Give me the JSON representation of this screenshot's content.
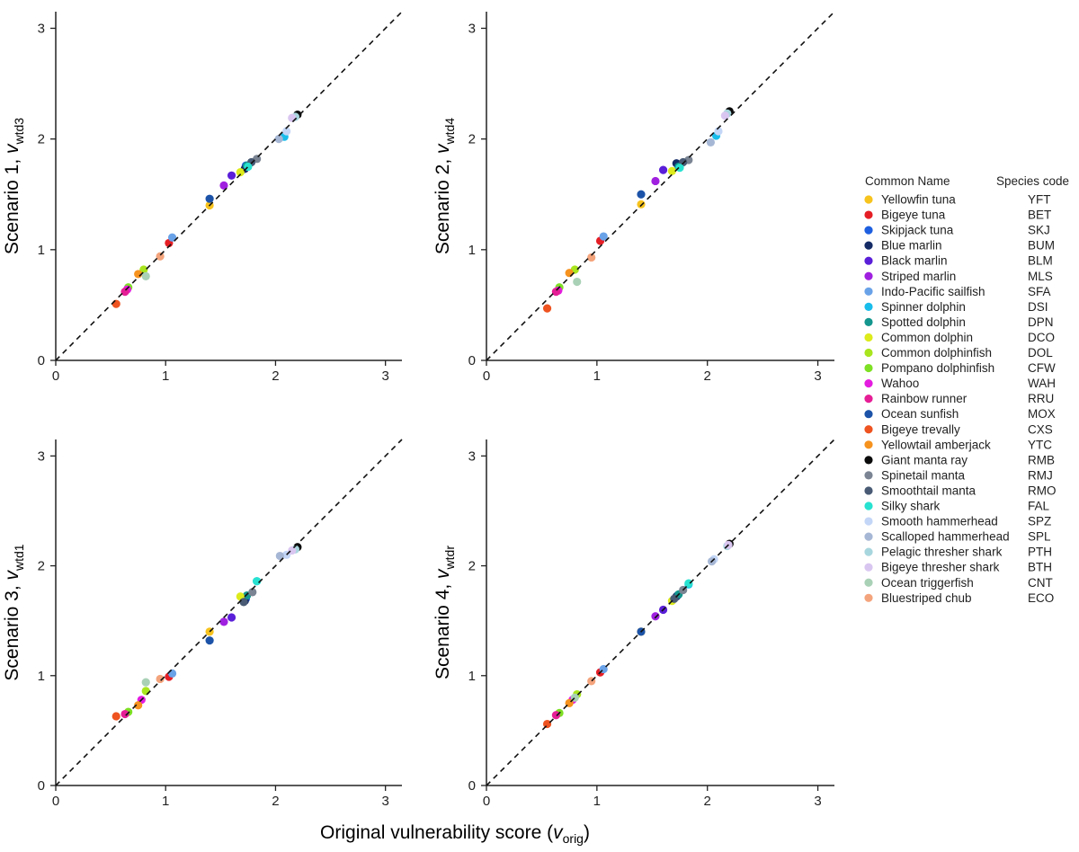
{
  "chart_data": {
    "type": "scatter",
    "xlabel_main": "Original vulnerability score (",
    "xlabel_var": "v",
    "xlabel_sub": "orig",
    "xlabel_close": ")",
    "x_range": [
      0,
      3.15
    ],
    "y_range": [
      0,
      3.15
    ],
    "x_ticks": [
      "0",
      "1",
      "2",
      "3"
    ],
    "y_ticks": [
      "0",
      "1",
      "2",
      "3"
    ],
    "reference_line": "y = x (dashed)",
    "legend": {
      "header_name": "Common Name",
      "header_code": "Species code",
      "entries": [
        {
          "name": "Yellowfin tuna",
          "code": "YFT",
          "color": "#F7C31D"
        },
        {
          "name": "Bigeye tuna",
          "code": "BET",
          "color": "#E51E25"
        },
        {
          "name": "Skipjack tuna",
          "code": "SKJ",
          "color": "#1E5FE0"
        },
        {
          "name": "Blue marlin",
          "code": "BUM",
          "color": "#142B66"
        },
        {
          "name": "Black marlin",
          "code": "BLM",
          "color": "#5A1FD8"
        },
        {
          "name": "Striped marlin",
          "code": "MLS",
          "color": "#A020E0"
        },
        {
          "name": "Indo-Pacific sailfish",
          "code": "SFA",
          "color": "#6AA2E8"
        },
        {
          "name": "Spinner dolphin",
          "code": "DSI",
          "color": "#19BDEB"
        },
        {
          "name": "Spotted dolphin",
          "code": "DPN",
          "color": "#14968E"
        },
        {
          "name": "Common dolphin",
          "code": "DCO",
          "color": "#DDEB1C"
        },
        {
          "name": "Common dolphinfish",
          "code": "DOL",
          "color": "#A9E51E"
        },
        {
          "name": "Pompano dolphinfish",
          "code": "CFW",
          "color": "#7EE024"
        },
        {
          "name": "Wahoo",
          "code": "WAH",
          "color": "#E41CE0"
        },
        {
          "name": "Rainbow runner",
          "code": "RRU",
          "color": "#E61E96"
        },
        {
          "name": "Ocean sunfish",
          "code": "MOX",
          "color": "#1C53A8"
        },
        {
          "name": "Bigeye trevally",
          "code": "CXS",
          "color": "#EE5320"
        },
        {
          "name": "Yellowtail amberjack",
          "code": "YTC",
          "color": "#F6921E"
        },
        {
          "name": "Giant manta ray",
          "code": "RMB",
          "color": "#0A0A0A"
        },
        {
          "name": "Spinetail manta",
          "code": "RMJ",
          "color": "#7A8493"
        },
        {
          "name": "Smoothtail manta",
          "code": "RMO",
          "color": "#485A74"
        },
        {
          "name": "Silky shark",
          "code": "FAL",
          "color": "#27E2D0"
        },
        {
          "name": "Smooth hammerhead",
          "code": "SPZ",
          "color": "#C3D6F7"
        },
        {
          "name": "Scalloped hammerhead",
          "code": "SPL",
          "color": "#A6B7D5"
        },
        {
          "name": "Pelagic thresher shark",
          "code": "PTH",
          "color": "#A8D6DE"
        },
        {
          "name": "Bigeye thresher shark",
          "code": "BTH",
          "color": "#D9C6F0"
        },
        {
          "name": "Ocean triggerfish",
          "code": "CNT",
          "color": "#A9D1B6"
        },
        {
          "name": "Bluestriped chub",
          "code": "ECO",
          "color": "#F4A47C"
        }
      ]
    },
    "panels": [
      {
        "ylabel": "Scenario 1, ",
        "yvar": "v",
        "ysub": "wtd3",
        "points": [
          {
            "code": "YFT",
            "x": 1.4,
            "y": 1.4
          },
          {
            "code": "BET",
            "x": 1.03,
            "y": 1.06
          },
          {
            "code": "SKJ",
            "x": 1.73,
            "y": 1.76
          },
          {
            "code": "BUM",
            "x": 1.72,
            "y": 1.73
          },
          {
            "code": "BLM",
            "x": 1.6,
            "y": 1.67
          },
          {
            "code": "MLS",
            "x": 1.53,
            "y": 1.58
          },
          {
            "code": "SFA",
            "x": 1.06,
            "y": 1.11
          },
          {
            "code": "DSI",
            "x": 2.08,
            "y": 2.02
          },
          {
            "code": "DPN",
            "x": 1.74,
            "y": 1.76
          },
          {
            "code": "DCO",
            "x": 1.68,
            "y": 1.7
          },
          {
            "code": "DOL",
            "x": 0.8,
            "y": 0.82
          },
          {
            "code": "CFW",
            "x": 0.66,
            "y": 0.66
          },
          {
            "code": "WAH",
            "x": 0.65,
            "y": 0.64
          },
          {
            "code": "RRU",
            "x": 0.63,
            "y": 0.62
          },
          {
            "code": "MOX",
            "x": 1.4,
            "y": 1.46
          },
          {
            "code": "CXS",
            "x": 0.55,
            "y": 0.51
          },
          {
            "code": "YTC",
            "x": 0.75,
            "y": 0.78
          },
          {
            "code": "RMB",
            "x": 2.2,
            "y": 2.22
          },
          {
            "code": "RMJ",
            "x": 1.83,
            "y": 1.82
          },
          {
            "code": "RMO",
            "x": 1.78,
            "y": 1.79
          },
          {
            "code": "FAL",
            "x": 1.75,
            "y": 1.75
          },
          {
            "code": "SPZ",
            "x": 2.1,
            "y": 2.07
          },
          {
            "code": "SPL",
            "x": 2.03,
            "y": 2.0
          },
          {
            "code": "PTH",
            "x": 2.18,
            "y": 2.2
          },
          {
            "code": "BTH",
            "x": 2.15,
            "y": 2.19
          },
          {
            "code": "CNT",
            "x": 0.82,
            "y": 0.76
          },
          {
            "code": "ECO",
            "x": 0.95,
            "y": 0.94
          }
        ]
      },
      {
        "ylabel": "Scenario 2, ",
        "yvar": "v",
        "ysub": "wtd4",
        "points": [
          {
            "code": "YFT",
            "x": 1.4,
            "y": 1.41
          },
          {
            "code": "BET",
            "x": 1.03,
            "y": 1.08
          },
          {
            "code": "SKJ",
            "x": 1.73,
            "y": 1.77
          },
          {
            "code": "BUM",
            "x": 1.72,
            "y": 1.78
          },
          {
            "code": "BLM",
            "x": 1.6,
            "y": 1.72
          },
          {
            "code": "MLS",
            "x": 1.53,
            "y": 1.62
          },
          {
            "code": "SFA",
            "x": 1.06,
            "y": 1.12
          },
          {
            "code": "DSI",
            "x": 2.08,
            "y": 2.03
          },
          {
            "code": "DPN",
            "x": 1.74,
            "y": 1.75
          },
          {
            "code": "DCO",
            "x": 1.68,
            "y": 1.71
          },
          {
            "code": "DOL",
            "x": 0.8,
            "y": 0.82
          },
          {
            "code": "CFW",
            "x": 0.66,
            "y": 0.66
          },
          {
            "code": "WAH",
            "x": 0.65,
            "y": 0.63
          },
          {
            "code": "RRU",
            "x": 0.63,
            "y": 0.62
          },
          {
            "code": "MOX",
            "x": 1.4,
            "y": 1.5
          },
          {
            "code": "CXS",
            "x": 0.55,
            "y": 0.47
          },
          {
            "code": "YTC",
            "x": 0.75,
            "y": 0.79
          },
          {
            "code": "RMB",
            "x": 2.2,
            "y": 2.25
          },
          {
            "code": "RMJ",
            "x": 1.83,
            "y": 1.81
          },
          {
            "code": "RMO",
            "x": 1.78,
            "y": 1.79
          },
          {
            "code": "FAL",
            "x": 1.75,
            "y": 1.74
          },
          {
            "code": "SPZ",
            "x": 2.1,
            "y": 2.07
          },
          {
            "code": "SPL",
            "x": 2.03,
            "y": 1.97
          },
          {
            "code": "PTH",
            "x": 2.18,
            "y": 2.23
          },
          {
            "code": "BTH",
            "x": 2.16,
            "y": 2.21
          },
          {
            "code": "CNT",
            "x": 0.82,
            "y": 0.71
          },
          {
            "code": "ECO",
            "x": 0.95,
            "y": 0.93
          }
        ]
      },
      {
        "ylabel": "Scenario 3, ",
        "yvar": "v",
        "ysub": "wtd1",
        "points": [
          {
            "code": "YFT",
            "x": 1.4,
            "y": 1.4
          },
          {
            "code": "BET",
            "x": 1.03,
            "y": 0.99
          },
          {
            "code": "SKJ",
            "x": 1.73,
            "y": 1.7
          },
          {
            "code": "BUM",
            "x": 1.72,
            "y": 1.68
          },
          {
            "code": "BLM",
            "x": 1.6,
            "y": 1.53
          },
          {
            "code": "MLS",
            "x": 1.53,
            "y": 1.49
          },
          {
            "code": "SFA",
            "x": 1.06,
            "y": 1.02
          },
          {
            "code": "DSI",
            "x": 1.83,
            "y": 1.86
          },
          {
            "code": "DPN",
            "x": 1.74,
            "y": 1.73
          },
          {
            "code": "DCO",
            "x": 1.68,
            "y": 1.72
          },
          {
            "code": "DOL",
            "x": 0.82,
            "y": 0.86
          },
          {
            "code": "CFW",
            "x": 0.66,
            "y": 0.67
          },
          {
            "code": "WAH",
            "x": 0.78,
            "y": 0.78
          },
          {
            "code": "RRU",
            "x": 0.63,
            "y": 0.65
          },
          {
            "code": "MOX",
            "x": 1.4,
            "y": 1.32
          },
          {
            "code": "CXS",
            "x": 0.55,
            "y": 0.63
          },
          {
            "code": "YTC",
            "x": 0.75,
            "y": 0.73
          },
          {
            "code": "RMB",
            "x": 2.2,
            "y": 2.17
          },
          {
            "code": "RMJ",
            "x": 1.79,
            "y": 1.76
          },
          {
            "code": "RMO",
            "x": 1.71,
            "y": 1.67
          },
          {
            "code": "FAL",
            "x": 1.83,
            "y": 1.86
          },
          {
            "code": "SPZ",
            "x": 2.1,
            "y": 2.1
          },
          {
            "code": "SPL",
            "x": 2.04,
            "y": 2.09
          },
          {
            "code": "PTH",
            "x": 2.18,
            "y": 2.15
          },
          {
            "code": "BTH",
            "x": 2.15,
            "y": 2.14
          },
          {
            "code": "CNT",
            "x": 0.82,
            "y": 0.94
          },
          {
            "code": "ECO",
            "x": 0.95,
            "y": 0.97
          }
        ]
      },
      {
        "ylabel": "Scenario 4, ",
        "yvar": "v",
        "ysub": "wtdr",
        "points": [
          {
            "code": "YFT",
            "x": 1.4,
            "y": 1.4
          },
          {
            "code": "BET",
            "x": 1.03,
            "y": 1.03
          },
          {
            "code": "SKJ",
            "x": 1.73,
            "y": 1.73
          },
          {
            "code": "BUM",
            "x": 1.72,
            "y": 1.72
          },
          {
            "code": "BLM",
            "x": 1.6,
            "y": 1.6
          },
          {
            "code": "MLS",
            "x": 1.53,
            "y": 1.54
          },
          {
            "code": "SFA",
            "x": 1.06,
            "y": 1.06
          },
          {
            "code": "DSI",
            "x": 1.83,
            "y": 1.83
          },
          {
            "code": "DPN",
            "x": 1.74,
            "y": 1.74
          },
          {
            "code": "DCO",
            "x": 1.68,
            "y": 1.68
          },
          {
            "code": "DOL",
            "x": 0.82,
            "y": 0.83
          },
          {
            "code": "CFW",
            "x": 0.66,
            "y": 0.66
          },
          {
            "code": "WAH",
            "x": 0.78,
            "y": 0.78
          },
          {
            "code": "RRU",
            "x": 0.63,
            "y": 0.64
          },
          {
            "code": "MOX",
            "x": 1.4,
            "y": 1.4
          },
          {
            "code": "CXS",
            "x": 0.55,
            "y": 0.56
          },
          {
            "code": "YTC",
            "x": 0.75,
            "y": 0.75
          },
          {
            "code": "RMB",
            "x": 2.2,
            "y": 2.2
          },
          {
            "code": "RMJ",
            "x": 1.78,
            "y": 1.78
          },
          {
            "code": "RMO",
            "x": 1.7,
            "y": 1.7
          },
          {
            "code": "FAL",
            "x": 1.83,
            "y": 1.84
          },
          {
            "code": "SPZ",
            "x": 2.06,
            "y": 2.06
          },
          {
            "code": "SPL",
            "x": 2.04,
            "y": 2.04
          },
          {
            "code": "PTH",
            "x": 2.18,
            "y": 2.18
          },
          {
            "code": "BTH",
            "x": 2.19,
            "y": 2.19
          },
          {
            "code": "CNT",
            "x": 0.8,
            "y": 0.8
          },
          {
            "code": "ECO",
            "x": 0.95,
            "y": 0.95
          }
        ]
      }
    ]
  }
}
